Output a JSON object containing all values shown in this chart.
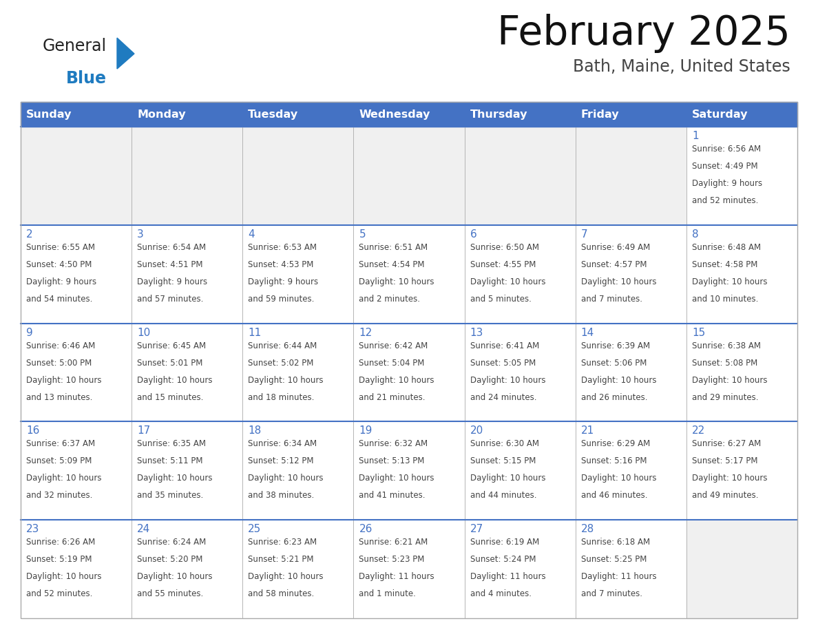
{
  "title": "February 2025",
  "subtitle": "Bath, Maine, United States",
  "days_of_week": [
    "Sunday",
    "Monday",
    "Tuesday",
    "Wednesday",
    "Thursday",
    "Friday",
    "Saturday"
  ],
  "header_bg": "#4472C4",
  "header_text_color": "#FFFFFF",
  "cell_bg_light": "#F0F0F0",
  "cell_bg_white": "#FFFFFF",
  "border_color": "#4472C4",
  "grid_color": "#AAAAAA",
  "text_color": "#444444",
  "title_color": "#111111",
  "subtitle_color": "#444444",
  "day_number_color": "#4472C4",
  "logo_text_color": "#222222",
  "logo_blue_color": "#1F7BC0",
  "logo_triangle_color": "#1F7BC0",
  "calendar_data": [
    [
      null,
      null,
      null,
      null,
      null,
      null,
      {
        "day": 1,
        "sunrise": "6:56 AM",
        "sunset": "4:49 PM",
        "daylight": "9 hours\nand 52 minutes."
      }
    ],
    [
      {
        "day": 2,
        "sunrise": "6:55 AM",
        "sunset": "4:50 PM",
        "daylight": "9 hours\nand 54 minutes."
      },
      {
        "day": 3,
        "sunrise": "6:54 AM",
        "sunset": "4:51 PM",
        "daylight": "9 hours\nand 57 minutes."
      },
      {
        "day": 4,
        "sunrise": "6:53 AM",
        "sunset": "4:53 PM",
        "daylight": "9 hours\nand 59 minutes."
      },
      {
        "day": 5,
        "sunrise": "6:51 AM",
        "sunset": "4:54 PM",
        "daylight": "10 hours\nand 2 minutes."
      },
      {
        "day": 6,
        "sunrise": "6:50 AM",
        "sunset": "4:55 PM",
        "daylight": "10 hours\nand 5 minutes."
      },
      {
        "day": 7,
        "sunrise": "6:49 AM",
        "sunset": "4:57 PM",
        "daylight": "10 hours\nand 7 minutes."
      },
      {
        "day": 8,
        "sunrise": "6:48 AM",
        "sunset": "4:58 PM",
        "daylight": "10 hours\nand 10 minutes."
      }
    ],
    [
      {
        "day": 9,
        "sunrise": "6:46 AM",
        "sunset": "5:00 PM",
        "daylight": "10 hours\nand 13 minutes."
      },
      {
        "day": 10,
        "sunrise": "6:45 AM",
        "sunset": "5:01 PM",
        "daylight": "10 hours\nand 15 minutes."
      },
      {
        "day": 11,
        "sunrise": "6:44 AM",
        "sunset": "5:02 PM",
        "daylight": "10 hours\nand 18 minutes."
      },
      {
        "day": 12,
        "sunrise": "6:42 AM",
        "sunset": "5:04 PM",
        "daylight": "10 hours\nand 21 minutes."
      },
      {
        "day": 13,
        "sunrise": "6:41 AM",
        "sunset": "5:05 PM",
        "daylight": "10 hours\nand 24 minutes."
      },
      {
        "day": 14,
        "sunrise": "6:39 AM",
        "sunset": "5:06 PM",
        "daylight": "10 hours\nand 26 minutes."
      },
      {
        "day": 15,
        "sunrise": "6:38 AM",
        "sunset": "5:08 PM",
        "daylight": "10 hours\nand 29 minutes."
      }
    ],
    [
      {
        "day": 16,
        "sunrise": "6:37 AM",
        "sunset": "5:09 PM",
        "daylight": "10 hours\nand 32 minutes."
      },
      {
        "day": 17,
        "sunrise": "6:35 AM",
        "sunset": "5:11 PM",
        "daylight": "10 hours\nand 35 minutes."
      },
      {
        "day": 18,
        "sunrise": "6:34 AM",
        "sunset": "5:12 PM",
        "daylight": "10 hours\nand 38 minutes."
      },
      {
        "day": 19,
        "sunrise": "6:32 AM",
        "sunset": "5:13 PM",
        "daylight": "10 hours\nand 41 minutes."
      },
      {
        "day": 20,
        "sunrise": "6:30 AM",
        "sunset": "5:15 PM",
        "daylight": "10 hours\nand 44 minutes."
      },
      {
        "day": 21,
        "sunrise": "6:29 AM",
        "sunset": "5:16 PM",
        "daylight": "10 hours\nand 46 minutes."
      },
      {
        "day": 22,
        "sunrise": "6:27 AM",
        "sunset": "5:17 PM",
        "daylight": "10 hours\nand 49 minutes."
      }
    ],
    [
      {
        "day": 23,
        "sunrise": "6:26 AM",
        "sunset": "5:19 PM",
        "daylight": "10 hours\nand 52 minutes."
      },
      {
        "day": 24,
        "sunrise": "6:24 AM",
        "sunset": "5:20 PM",
        "daylight": "10 hours\nand 55 minutes."
      },
      {
        "day": 25,
        "sunrise": "6:23 AM",
        "sunset": "5:21 PM",
        "daylight": "10 hours\nand 58 minutes."
      },
      {
        "day": 26,
        "sunrise": "6:21 AM",
        "sunset": "5:23 PM",
        "daylight": "11 hours\nand 1 minute."
      },
      {
        "day": 27,
        "sunrise": "6:19 AM",
        "sunset": "5:24 PM",
        "daylight": "11 hours\nand 4 minutes."
      },
      {
        "day": 28,
        "sunrise": "6:18 AM",
        "sunset": "5:25 PM",
        "daylight": "11 hours\nand 7 minutes."
      },
      null
    ]
  ]
}
